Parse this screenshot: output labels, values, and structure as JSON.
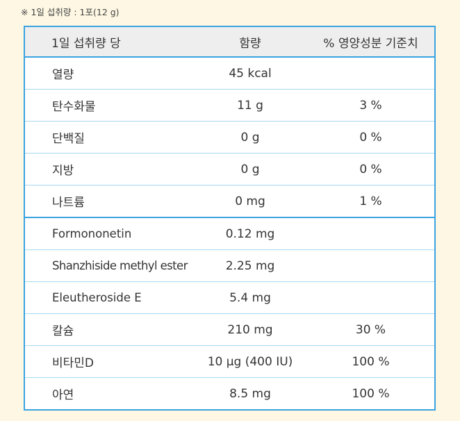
{
  "serving_note": "※ 1일 섭취량 : 1포(12 g)",
  "table": {
    "headers": {
      "name": "1일 섭취량 당",
      "amount": "함량",
      "daily_value": "% 영양성분 기준치"
    },
    "rows": [
      {
        "name": "열량",
        "amount": "45 kcal",
        "daily_value": ""
      },
      {
        "name": "탄수화물",
        "amount": "11 g",
        "daily_value": "3 %"
      },
      {
        "name": "단백질",
        "amount": "0 g",
        "daily_value": "0 %"
      },
      {
        "name": "지방",
        "amount": "0 g",
        "daily_value": "0 %"
      },
      {
        "name": "나트륨",
        "amount": "0 mg",
        "daily_value": "1 %"
      },
      {
        "name": "Formononetin",
        "amount": "0.12 mg",
        "daily_value": ""
      },
      {
        "name": "Shanzhiside methyl ester",
        "amount": "2.25 mg",
        "daily_value": ""
      },
      {
        "name": "Eleutheroside E",
        "amount": "5.4 mg",
        "daily_value": ""
      },
      {
        "name": "칼슘",
        "amount": "210 mg",
        "daily_value": "30 %"
      },
      {
        "name": "비타민D",
        "amount": "10 μg (400 IU)",
        "daily_value": "100 %"
      },
      {
        "name": "아연",
        "amount": "8.5 mg",
        "daily_value": "100 %"
      }
    ]
  },
  "colors": {
    "background": "#fdf7e3",
    "border": "#3aa3e0",
    "header_bg": "#eeeeee"
  }
}
